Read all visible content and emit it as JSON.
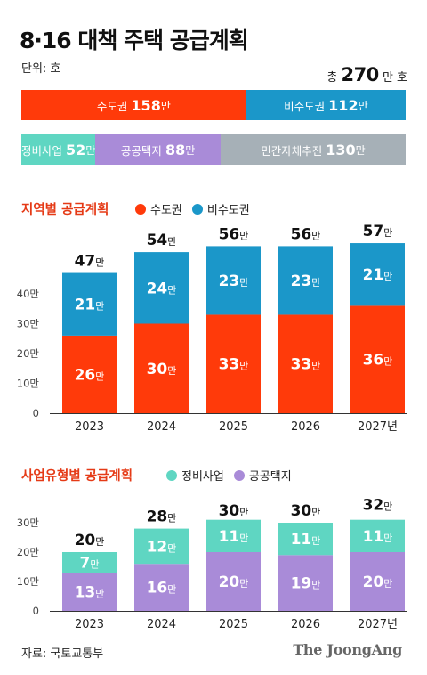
{
  "header": {
    "title": "8·16 대책 주택 공급계획",
    "unit": "단위: 호",
    "total_prefix": "총",
    "total_value": "270",
    "total_suffix": "만 호"
  },
  "proportion_bars": {
    "region": [
      {
        "label": "수도권",
        "value": "158",
        "unit": "만",
        "amount": 158,
        "color": "#ff3a0a"
      },
      {
        "label": "비수도권",
        "value": "112",
        "unit": "만",
        "amount": 112,
        "color": "#1b97c9"
      }
    ],
    "type": [
      {
        "label": "정비사업",
        "value": "52",
        "unit": "만",
        "amount": 52,
        "color": "#5fd6c2"
      },
      {
        "label": "공공택지",
        "value": "88",
        "unit": "만",
        "amount": 88,
        "color": "#a98bd8"
      },
      {
        "label": "민간자체추진",
        "value": "130",
        "unit": "만",
        "amount": 130,
        "color": "#a6b0b7"
      }
    ]
  },
  "legends": {
    "chart1_title": "지역별 공급계획",
    "chart1_items": [
      {
        "label": "수도권",
        "color": "#ff3a0a"
      },
      {
        "label": "비수도권",
        "color": "#1b97c9"
      }
    ],
    "chart2_title": "사업유형별 공급계획",
    "chart2_items": [
      {
        "label": "정비사업",
        "color": "#5fd6c2"
      },
      {
        "label": "공공택지",
        "color": "#a98bd8"
      }
    ]
  },
  "chart_data": [
    {
      "type": "bar",
      "stacked": true,
      "title": "지역별 공급계획",
      "categories": [
        "2023",
        "2024",
        "2025",
        "2026",
        "2027년"
      ],
      "series": [
        {
          "name": "수도권",
          "color": "#ff3a0a",
          "values": [
            26,
            30,
            33,
            33,
            36
          ]
        },
        {
          "name": "비수도권",
          "color": "#1b97c9",
          "values": [
            21,
            24,
            23,
            23,
            21
          ]
        }
      ],
      "totals": [
        47,
        54,
        56,
        56,
        57
      ],
      "value_suffix": "만",
      "yticks": [
        "0",
        "10만",
        "20만",
        "30만",
        "40만"
      ],
      "ylim": [
        0,
        60
      ],
      "grid": false
    },
    {
      "type": "bar",
      "stacked": true,
      "title": "사업유형별 공급계획",
      "categories": [
        "2023",
        "2024",
        "2025",
        "2026",
        "2027년"
      ],
      "series": [
        {
          "name": "공공택지",
          "color": "#a98bd8",
          "values": [
            13,
            16,
            20,
            19,
            20
          ]
        },
        {
          "name": "정비사업",
          "color": "#5fd6c2",
          "values": [
            7,
            12,
            11,
            11,
            11
          ]
        }
      ],
      "totals": [
        20,
        28,
        30,
        30,
        32
      ],
      "value_suffix": "만",
      "yticks": [
        "0",
        "10만",
        "20만",
        "30만"
      ],
      "ylim": [
        0,
        36
      ],
      "grid": false
    }
  ],
  "footer": {
    "source": "자료: 국토교통부",
    "brand": "The JoongAng"
  }
}
